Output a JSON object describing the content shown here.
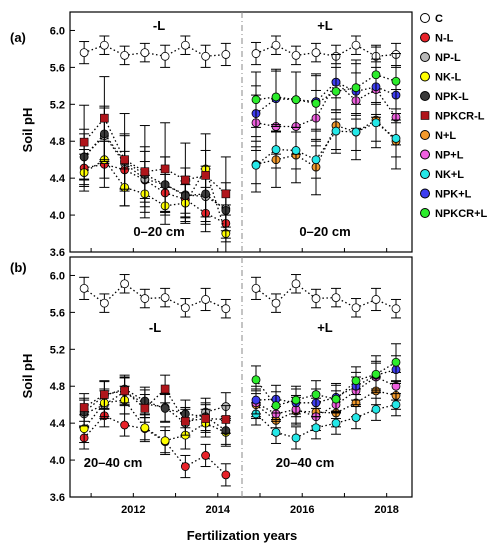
{
  "chart_data": {
    "type": "scatter",
    "x": [
      2011,
      2012,
      2013,
      2014,
      2015,
      2016,
      2017,
      2018
    ],
    "xlabel": "Fertilization years",
    "x_ticks": [
      "2012",
      "2014",
      "2016",
      "2018"
    ],
    "ylabel": "Soil pH",
    "legend": [
      {
        "name": "C",
        "color": "#ffffff"
      },
      {
        "name": "N-L",
        "color": "#e8232a"
      },
      {
        "name": "NP-L",
        "color": "#b8b8b8"
      },
      {
        "name": "NK-L",
        "color": "#ffff00"
      },
      {
        "name": "NPK-L",
        "color": "#3a3a3a"
      },
      {
        "name": "NPKCR-L",
        "color": "#b0151b"
      },
      {
        "name": "N+L",
        "color": "#f39a2c"
      },
      {
        "name": "NP+L",
        "color": "#f060e0"
      },
      {
        "name": "NK+L",
        "color": "#25e8e8"
      },
      {
        "name": "NPK+L",
        "color": "#3d3df0"
      },
      {
        "name": "NPKCR+L",
        "color": "#2cec2c"
      }
    ],
    "panels": [
      {
        "id": "(a)",
        "depth_left": "0–20 cm",
        "depth_right": "0–20 cm",
        "left_label": "-L",
        "right_label": "+L",
        "ylim": [
          3.6,
          6.2
        ],
        "yticks": [
          "3.6",
          "4.0",
          "4.4",
          "4.8",
          "5.2",
          "5.6",
          "6.0"
        ],
        "ytick_values": [
          3.6,
          4.0,
          4.4,
          4.8,
          5.2,
          5.6,
          6.0
        ],
        "left": [
          {
            "name": "C",
            "values": [
              5.76,
              5.84,
              5.73,
              5.76,
              5.72,
              5.84,
              5.72,
              5.74
            ],
            "err": [
              0.12,
              0.1,
              0.1,
              0.1,
              0.12,
              0.1,
              0.12,
              0.12
            ]
          },
          {
            "name": "N-L",
            "values": [
              4.51,
              4.55,
              4.49,
              4.38,
              4.24,
              4.17,
              4.02,
              3.91
            ],
            "err": [
              0.2,
              0.25,
              0.2,
              0.2,
              0.2,
              0.2,
              0.2,
              0.2
            ]
          },
          {
            "name": "NP-L",
            "values": [
              4.63,
              4.86,
              4.56,
              4.39,
              4.33,
              4.22,
              4.2,
              4.07
            ],
            "err": [
              0.25,
              0.3,
              0.3,
              0.3,
              0.3,
              0.2,
              0.3,
              0.2
            ]
          },
          {
            "name": "NK-L",
            "values": [
              4.46,
              4.6,
              4.3,
              4.23,
              4.1,
              4.13,
              4.5,
              3.8
            ],
            "err": [
              0.2,
              0.2,
              0.2,
              0.2,
              0.2,
              0.2,
              0.2,
              0.2
            ]
          },
          {
            "name": "NPK-L",
            "values": [
              4.63,
              4.88,
              4.58,
              4.44,
              4.33,
              4.21,
              4.23,
              4.05
            ],
            "err": [
              0.3,
              0.3,
              0.3,
              0.3,
              0.3,
              0.3,
              0.3,
              0.3
            ]
          },
          {
            "name": "NPKCR-L",
            "values": [
              4.79,
              5.05,
              4.6,
              4.47,
              4.5,
              4.38,
              4.43,
              4.23
            ],
            "err": [
              0.4,
              0.45,
              0.5,
              0.5,
              0.5,
              0.4,
              0.45,
              0.4
            ]
          }
        ],
        "right": [
          {
            "name": "C",
            "values": [
              5.75,
              5.84,
              5.73,
              5.76,
              5.72,
              5.84,
              5.72,
              5.74
            ],
            "err": [
              0.12,
              0.1,
              0.1,
              0.1,
              0.12,
              0.1,
              0.12,
              0.12
            ]
          },
          {
            "name": "N+L",
            "values": [
              4.55,
              4.6,
              4.65,
              4.52,
              4.97,
              4.9,
              5.03,
              4.8
            ],
            "err": [
              0.3,
              0.3,
              0.3,
              0.3,
              0.3,
              0.3,
              0.3,
              0.3
            ]
          },
          {
            "name": "NP+L",
            "values": [
              5.0,
              4.96,
              4.96,
              5.05,
              5.44,
              5.24,
              5.36,
              5.06
            ],
            "err": [
              0.3,
              0.3,
              0.3,
              0.3,
              0.3,
              0.3,
              0.3,
              0.3
            ]
          },
          {
            "name": "NK+L",
            "values": [
              4.54,
              4.71,
              4.7,
              4.6,
              4.91,
              4.9,
              5.0,
              4.83
            ],
            "err": [
              0.2,
              0.2,
              0.2,
              0.2,
              0.2,
              0.2,
              0.2,
              0.2
            ]
          },
          {
            "name": "NPK+L",
            "values": [
              5.1,
              5.26,
              5.25,
              5.23,
              5.44,
              5.34,
              5.39,
              5.3
            ],
            "err": [
              0.3,
              0.3,
              0.3,
              0.3,
              0.3,
              0.3,
              0.3,
              0.3
            ]
          },
          {
            "name": "NPKCR+L",
            "values": [
              5.25,
              5.28,
              5.25,
              5.21,
              5.34,
              5.38,
              5.52,
              5.45
            ],
            "err": [
              0.3,
              0.3,
              0.3,
              0.3,
              0.3,
              0.3,
              0.3,
              0.3
            ]
          }
        ]
      },
      {
        "id": "(b)",
        "depth_left": "20–40 cm",
        "depth_right": "20–40 cm",
        "left_label": "-L",
        "right_label": "+L",
        "ylim": [
          3.6,
          6.2
        ],
        "yticks": [
          "3.6",
          "4.0",
          "4.4",
          "4.8",
          "5.2",
          "5.6",
          "6.0"
        ],
        "ytick_values": [
          3.6,
          4.0,
          4.4,
          4.8,
          5.2,
          5.6,
          6.0
        ],
        "left": [
          {
            "name": "C",
            "values": [
              5.86,
              5.7,
              5.91,
              5.75,
              5.76,
              5.65,
              5.74,
              5.64
            ],
            "err": [
              0.12,
              0.1,
              0.1,
              0.1,
              0.1,
              0.1,
              0.12,
              0.1
            ]
          },
          {
            "name": "N-L",
            "values": [
              4.24,
              4.48,
              4.38,
              4.34,
              4.2,
              3.93,
              4.05,
              3.84
            ],
            "err": [
              0.12,
              0.12,
              0.12,
              0.12,
              0.12,
              0.12,
              0.12,
              0.12
            ]
          },
          {
            "name": "NP-L",
            "values": [
              4.5,
              4.6,
              4.74,
              4.61,
              4.57,
              4.4,
              4.52,
              4.58
            ],
            "err": [
              0.15,
              0.15,
              0.15,
              0.15,
              0.15,
              0.15,
              0.15,
              0.15
            ]
          },
          {
            "name": "NK-L",
            "values": [
              4.34,
              4.62,
              4.65,
              4.35,
              4.21,
              4.27,
              4.4,
              4.3
            ],
            "err": [
              0.15,
              0.15,
              0.15,
              0.15,
              0.15,
              0.15,
              0.15,
              0.15
            ]
          },
          {
            "name": "NPK-L",
            "values": [
              4.52,
              4.7,
              4.77,
              4.64,
              4.56,
              4.5,
              4.47,
              4.32
            ],
            "err": [
              0.15,
              0.15,
              0.15,
              0.15,
              0.15,
              0.15,
              0.15,
              0.15
            ]
          },
          {
            "name": "NPKCR-L",
            "values": [
              4.57,
              4.71,
              4.75,
              4.56,
              4.77,
              4.42,
              4.45,
              4.44
            ],
            "err": [
              0.15,
              0.15,
              0.15,
              0.15,
              0.15,
              0.15,
              0.15,
              0.15
            ]
          }
        ],
        "right": [
          {
            "name": "C",
            "values": [
              5.86,
              5.7,
              5.91,
              5.75,
              5.76,
              5.65,
              5.74,
              5.64
            ],
            "err": [
              0.12,
              0.1,
              0.1,
              0.1,
              0.1,
              0.1,
              0.12,
              0.1
            ]
          },
          {
            "name": "N+L",
            "values": [
              4.6,
              4.43,
              4.53,
              4.52,
              4.51,
              4.62,
              4.75,
              4.7
            ],
            "err": [
              0.15,
              0.15,
              0.15,
              0.15,
              0.15,
              0.15,
              0.15,
              0.15
            ]
          },
          {
            "name": "NP+L",
            "values": [
              4.62,
              4.5,
              4.55,
              4.47,
              4.6,
              4.75,
              4.9,
              4.8
            ],
            "err": [
              0.15,
              0.15,
              0.15,
              0.15,
              0.15,
              0.15,
              0.15,
              0.15
            ]
          },
          {
            "name": "NK+L",
            "values": [
              4.5,
              4.3,
              4.24,
              4.35,
              4.4,
              4.46,
              4.55,
              4.6
            ],
            "err": [
              0.12,
              0.12,
              0.12,
              0.12,
              0.12,
              0.12,
              0.12,
              0.12
            ]
          },
          {
            "name": "NPK+L",
            "values": [
              4.65,
              4.66,
              4.62,
              4.62,
              4.68,
              4.8,
              4.92,
              4.98
            ],
            "err": [
              0.15,
              0.15,
              0.15,
              0.15,
              0.15,
              0.15,
              0.15,
              0.15
            ]
          },
          {
            "name": "NPKCR+L",
            "values": [
              4.87,
              4.59,
              4.65,
              4.71,
              4.66,
              4.86,
              4.93,
              5.06
            ],
            "err": [
              0.15,
              0.15,
              0.15,
              0.15,
              0.15,
              0.15,
              0.2,
              0.2
            ]
          }
        ]
      }
    ]
  }
}
